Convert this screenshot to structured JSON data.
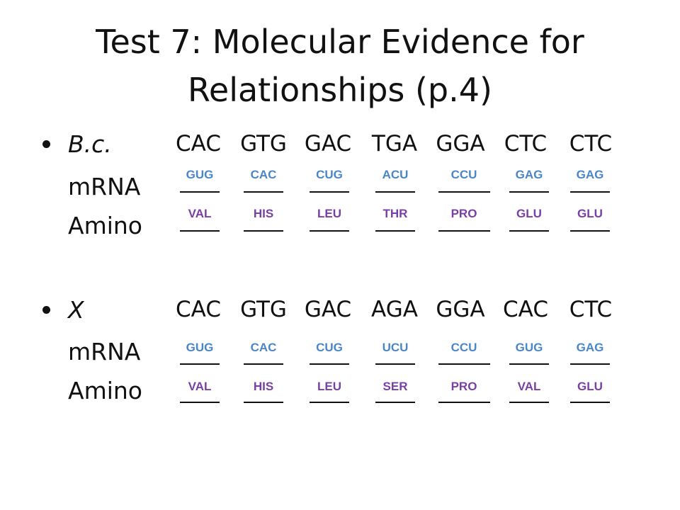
{
  "title": {
    "line1": "Test 7: Molecular Evidence for",
    "line2": "Relationships (p.4)"
  },
  "colors": {
    "mrna": "#4a86c8",
    "amino": "#7a3fa6"
  },
  "groups": [
    {
      "organism": "B.c.",
      "mrna_label": "mRNA",
      "amino_label": "Amino",
      "dna": [
        "CAC",
        "GTG",
        "GAC",
        "TGA",
        "GGA",
        "CTC",
        "CTC"
      ],
      "mrna": [
        "GUG",
        "CAC",
        "CUG",
        "ACU",
        "CCU",
        "GAG",
        "GAG"
      ],
      "amino": [
        "VAL",
        "HIS",
        "LEU",
        "THR",
        "PRO",
        "GLU",
        "GLU"
      ]
    },
    {
      "organism": "X",
      "mrna_label": "mRNA",
      "amino_label": "Amino",
      "dna": [
        "CAC",
        "GTG",
        "GAC",
        "AGA",
        "GGA",
        "CAC",
        "CTC"
      ],
      "mrna": [
        "GUG",
        "CAC",
        "CUG",
        "UCU",
        "CCU",
        "GUG",
        "GAG"
      ],
      "amino": [
        "VAL",
        "HIS",
        "LEU",
        "SER",
        "PRO",
        "VAL",
        "GLU"
      ]
    }
  ]
}
